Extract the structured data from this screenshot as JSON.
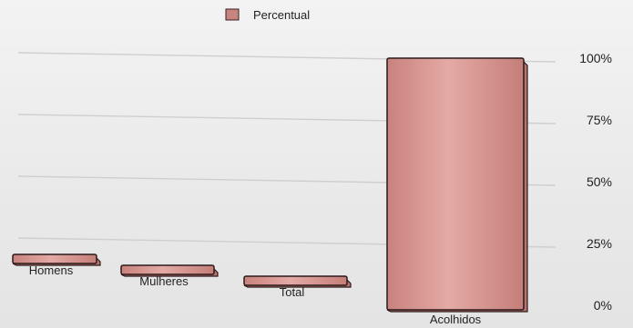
{
  "chart_data": {
    "type": "bar",
    "categories": [
      "Homens",
      "Mulheres",
      "Total",
      "Acolhidos"
    ],
    "series": [
      {
        "name": "Percentual",
        "values": [
          3,
          4,
          5,
          100
        ]
      }
    ],
    "ylim": [
      0,
      100
    ],
    "yticks": [
      "0%",
      "25%",
      "50%",
      "75%",
      "100%"
    ],
    "ytick_values": [
      0,
      25,
      50,
      75,
      100
    ],
    "legend_position": "top",
    "grid": true,
    "colors": {
      "bar": "#d99a95",
      "bar_dark": "#b9746f",
      "edge": "#2a1a1a",
      "grid": "#cfcfcf"
    }
  }
}
